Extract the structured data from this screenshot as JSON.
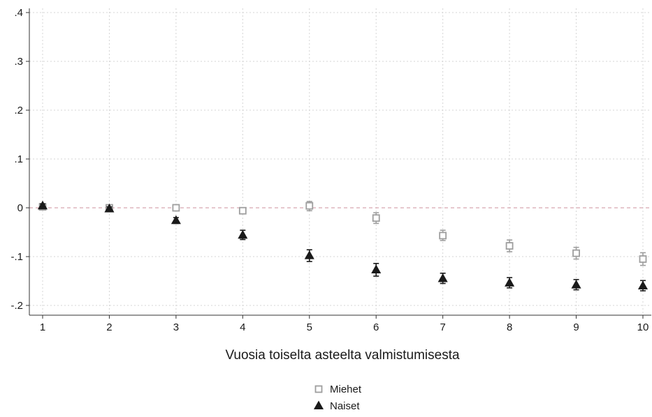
{
  "chart_data": {
    "type": "scatter",
    "title": "",
    "xlabel": "Vuosia toiselta asteelta valmistumisesta",
    "ylabel": "",
    "x": [
      1,
      2,
      3,
      4,
      5,
      6,
      7,
      8,
      9,
      10
    ],
    "xlim": [
      1,
      10
    ],
    "ylim": [
      -0.2,
      0.4
    ],
    "xticks": [
      1,
      2,
      3,
      4,
      5,
      6,
      7,
      8,
      9,
      10
    ],
    "xtick_labels": [
      "1",
      "2",
      "3",
      "4",
      "5",
      "6",
      "7",
      "8",
      "9",
      "10"
    ],
    "yticks": [
      -0.2,
      -0.1,
      0,
      0.1,
      0.2,
      0.3,
      0.4
    ],
    "ytick_labels": [
      "-.2",
      "-.1",
      "0",
      ".1",
      ".2",
      ".3",
      ".4"
    ],
    "grid": true,
    "reference_line": 0,
    "legend_position": "bottom-center",
    "series": [
      {
        "name": "Miehet",
        "marker": "square-hollow",
        "color": "#9e9e9e",
        "values": [
          0.002,
          0.0,
          0.0,
          -0.006,
          0.004,
          -0.021,
          -0.057,
          -0.078,
          -0.093,
          -0.105
        ],
        "ci_low": [
          -0.002,
          -0.004,
          -0.004,
          -0.01,
          -0.006,
          -0.032,
          -0.067,
          -0.09,
          -0.105,
          -0.118
        ],
        "ci_high": [
          0.006,
          0.004,
          0.004,
          -0.002,
          0.013,
          -0.01,
          -0.046,
          -0.066,
          -0.081,
          -0.092
        ]
      },
      {
        "name": "Naiset",
        "marker": "triangle-filled",
        "color": "#1a1a1a",
        "values": [
          0.004,
          -0.002,
          -0.026,
          -0.056,
          -0.098,
          -0.127,
          -0.145,
          -0.154,
          -0.158,
          -0.16
        ],
        "ci_low": [
          0.0,
          -0.006,
          -0.032,
          -0.065,
          -0.11,
          -0.14,
          -0.155,
          -0.164,
          -0.168,
          -0.17
        ],
        "ci_high": [
          0.008,
          0.002,
          -0.02,
          -0.046,
          -0.086,
          -0.114,
          -0.134,
          -0.143,
          -0.147,
          -0.149
        ]
      }
    ]
  },
  "colors": {
    "grid": "#d4d4d4",
    "axis": "#333333",
    "reference_line": "#d8a6b0"
  }
}
